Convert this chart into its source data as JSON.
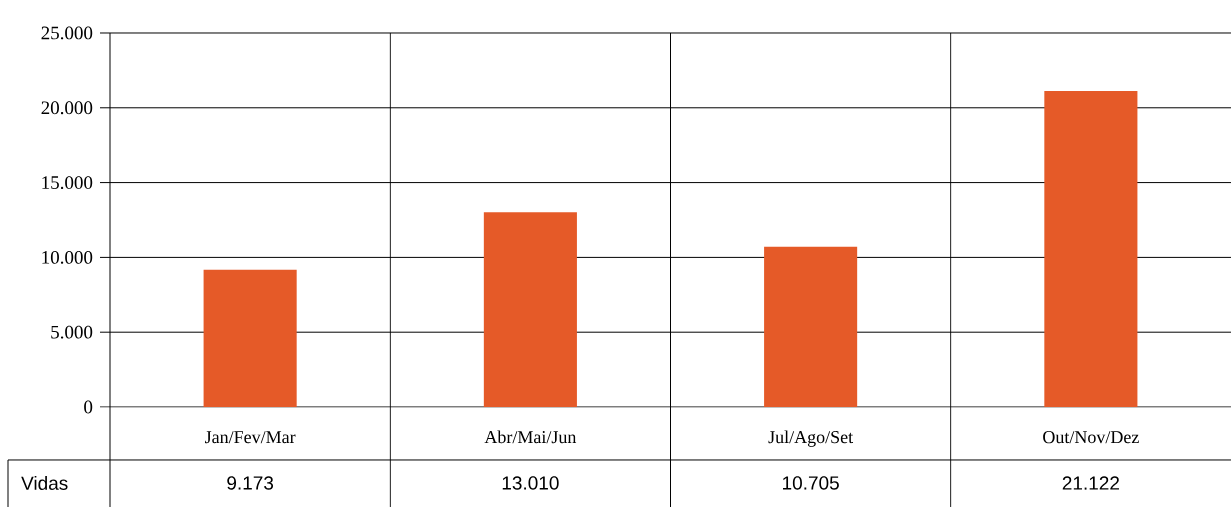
{
  "chart_data": {
    "type": "bar",
    "categories": [
      "Jan/Fev/Mar",
      "Abr/Mai/Jun",
      "Jul/Ago/Set",
      "Out/Nov/Dez"
    ],
    "series": [
      {
        "name": "Vidas",
        "color": "#e55a28",
        "values": [
          9173,
          13010,
          10705,
          21122
        ],
        "value_labels": [
          "9.173",
          "13.010",
          "10.705",
          "21.122"
        ]
      }
    ],
    "ylim": [
      0,
      25000
    ],
    "yticks": [
      0,
      {
        "value": 5000,
        "label": "5.000"
      },
      {
        "value": 10000,
        "label": "10.000"
      },
      {
        "value": 15000,
        "label": "15.000"
      },
      {
        "value": 20000,
        "label": "20.000"
      },
      {
        "value": 25000,
        "label": "25.000"
      }
    ],
    "grid": true
  }
}
